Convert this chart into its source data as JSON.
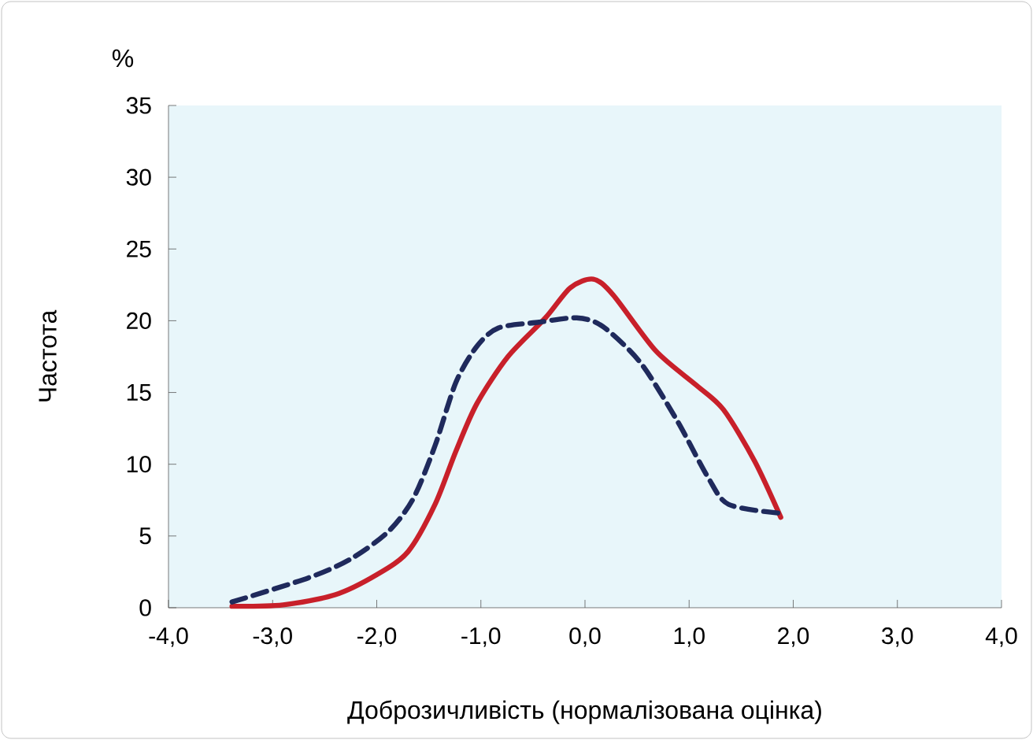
{
  "chart_data": {
    "type": "line",
    "xlabel": "Доброзичливість (нормалізована оцінка)",
    "ylabel": "Частота",
    "annotations": [
      "%"
    ],
    "xlim": [
      -4,
      4
    ],
    "ylim": [
      0,
      35
    ],
    "xticks": [
      {
        "value": -4,
        "label": "-4,0"
      },
      {
        "value": -3,
        "label": "-3,0"
      },
      {
        "value": -2,
        "label": "-2,0"
      },
      {
        "value": -1,
        "label": "-1,0"
      },
      {
        "value": 0,
        "label": "0,0"
      },
      {
        "value": 1,
        "label": "1,0"
      },
      {
        "value": 2,
        "label": "2,0"
      },
      {
        "value": 3,
        "label": "3,0"
      },
      {
        "value": 4,
        "label": "4,0"
      }
    ],
    "yticks": [
      0,
      5,
      10,
      15,
      20,
      25,
      30,
      35
    ],
    "grid": false,
    "series": [
      {
        "color": "#c8202a",
        "line_style": "solid",
        "x": [
          -3.39,
          -2.9,
          -2.4,
          -2.0,
          -1.7,
          -1.44,
          -1.24,
          -1.04,
          -0.74,
          -0.38,
          -0.14,
          0.08,
          0.27,
          0.68,
          1.07,
          1.33,
          1.63,
          1.88
        ],
        "values": [
          0.1,
          0.2,
          0.9,
          2.3,
          3.9,
          7.2,
          10.9,
          14.2,
          17.5,
          20.2,
          22.3,
          22.9,
          21.8,
          17.9,
          15.5,
          13.8,
          10.2,
          6.3
        ]
      },
      {
        "color": "#1f2a5c",
        "line_style": "dashed",
        "x": [
          -3.39,
          -2.65,
          -2.25,
          -1.89,
          -1.65,
          -1.44,
          -1.24,
          -1.04,
          -0.83,
          -0.44,
          -0.08,
          0.17,
          0.53,
          0.88,
          1.18,
          1.38,
          1.86
        ],
        "values": [
          0.4,
          2.1,
          3.4,
          5.3,
          7.6,
          11.3,
          15.7,
          18.2,
          19.5,
          19.9,
          20.2,
          19.6,
          17.1,
          13.1,
          9.1,
          7.2,
          6.6
        ]
      }
    ]
  }
}
